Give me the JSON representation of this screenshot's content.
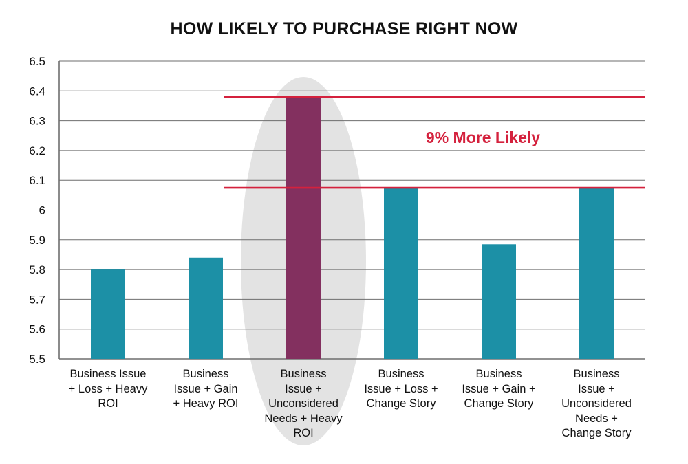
{
  "chart_data": {
    "type": "bar",
    "title": "HOW LIKELY TO PURCHASE RIGHT NOW",
    "xlabel": "",
    "ylabel": "",
    "ylim": [
      5.5,
      6.5
    ],
    "y_ticks": [
      "5.5",
      "5.6",
      "5.7",
      "5.8",
      "5.9",
      "6",
      "6.1",
      "6.2",
      "6.3",
      "6.4",
      "6.5"
    ],
    "y_tick_values": [
      5.5,
      5.6,
      5.7,
      5.8,
      5.9,
      6.0,
      6.1,
      6.2,
      6.3,
      6.4,
      6.5
    ],
    "grid": true,
    "legend": "none",
    "categories": [
      [
        "Business Issue",
        "+ Loss + Heavy",
        "ROI"
      ],
      [
        "Business",
        "Issue + Gain",
        "+ Heavy ROI"
      ],
      [
        "Business",
        "Issue +",
        "Unconsidered",
        "Needs + Heavy",
        "ROI"
      ],
      [
        "Business",
        "Issue + Loss +",
        "Change Story"
      ],
      [
        "Business",
        "Issue + Gain +",
        "Change Story"
      ],
      [
        "Business",
        "Issue +",
        "Unconsidered",
        "Needs +",
        "Change Story"
      ]
    ],
    "values": [
      5.8,
      5.84,
      6.38,
      6.075,
      5.885,
      6.075
    ],
    "highlight_index": 2,
    "reference_lines": [
      6.38,
      6.075
    ],
    "annotation": "9% More Likely",
    "colors": {
      "bar": "#1c90a6",
      "highlight_bar": "#83305f",
      "reference_line": "#d4213d",
      "annotation": "#d4213d",
      "highlight_ellipse": "#e3e3e3",
      "grid": "#6e6e6e",
      "text": "#111111"
    }
  }
}
